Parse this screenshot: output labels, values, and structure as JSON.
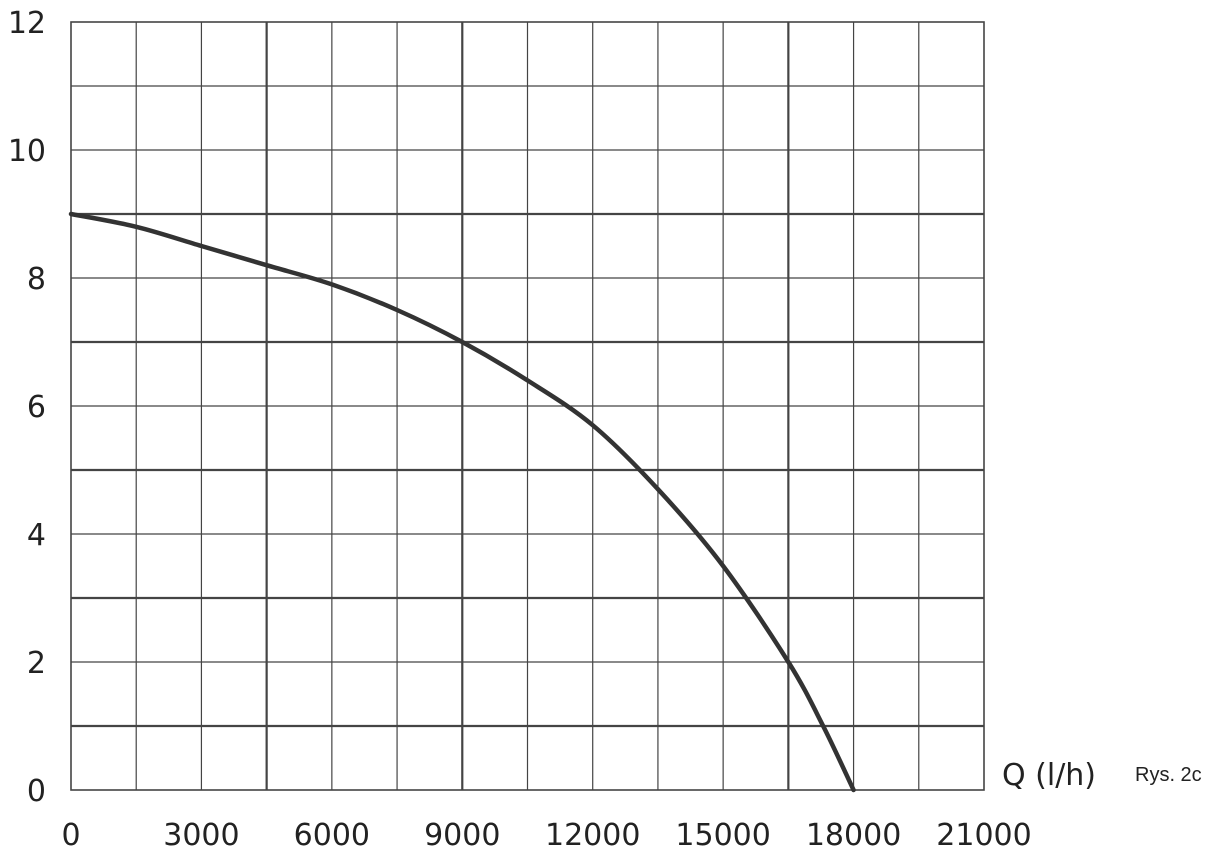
{
  "chart_data": {
    "type": "line",
    "title": "",
    "xlabel": "Q (l/h)",
    "ylabel": "",
    "caption": "Rys. 2c",
    "xlim": [
      0,
      21000
    ],
    "ylim": [
      0,
      12
    ],
    "x_ticks": [
      0,
      3000,
      6000,
      9000,
      12000,
      15000,
      18000,
      21000
    ],
    "x_tick_labels": [
      "0",
      "3000",
      "6000",
      "9000",
      "12000",
      "15000",
      "18000",
      "21000"
    ],
    "y_ticks": [
      0,
      2,
      4,
      6,
      8,
      10,
      12
    ],
    "y_tick_labels": [
      "0",
      "2",
      "4",
      "6",
      "8",
      "10",
      "12"
    ],
    "grid": true,
    "grid_x_step": 1500,
    "grid_y_step": 1,
    "emphasized_gridlines_x": [
      4500,
      9000,
      16500
    ],
    "emphasized_gridlines_y": [
      1,
      3,
      5,
      7,
      9
    ],
    "legend": "none",
    "colors": {
      "curve": "#333333",
      "grid": "#444444",
      "text": "#222222"
    },
    "series": [
      {
        "x": [
          0,
          1500,
          3000,
          4500,
          6000,
          7500,
          9000,
          10500,
          12000,
          13500,
          15000,
          16500,
          17300,
          18000
        ],
        "values": [
          9.0,
          8.8,
          8.5,
          8.2,
          7.9,
          7.5,
          7.0,
          6.4,
          5.7,
          4.7,
          3.5,
          2.0,
          1.0,
          0.0
        ]
      }
    ]
  }
}
